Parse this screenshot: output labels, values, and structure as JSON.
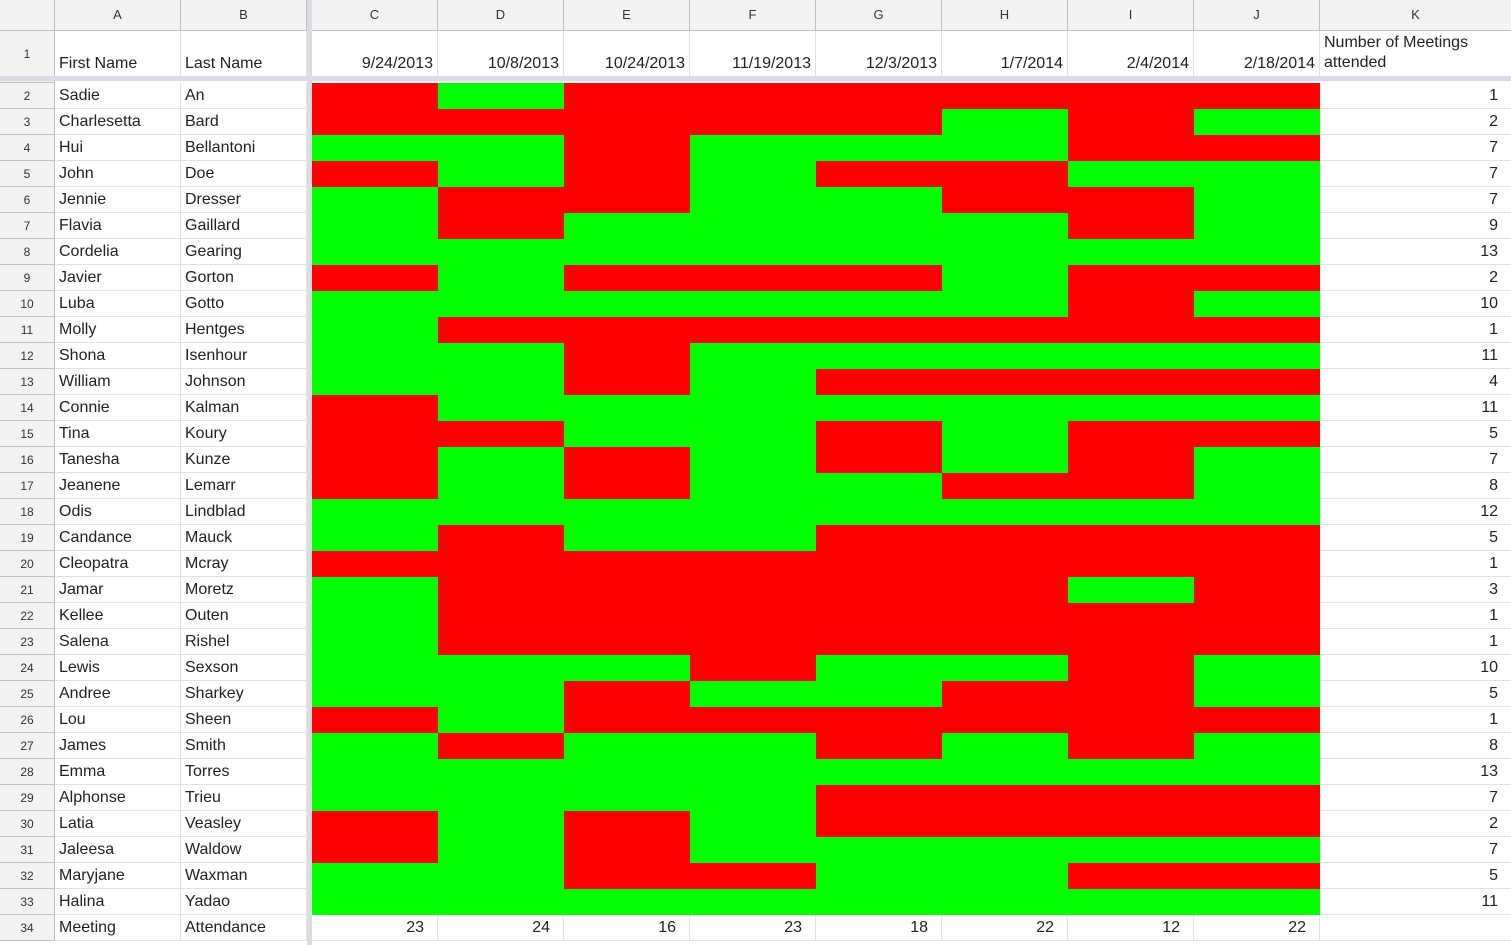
{
  "columns": [
    "A",
    "B",
    "C",
    "D",
    "E",
    "F",
    "G",
    "H",
    "I",
    "J",
    "K"
  ],
  "headers": {
    "first_name": "First Name",
    "last_name": "Last Name",
    "dates": [
      "9/24/2013",
      "10/8/2013",
      "10/24/2013",
      "11/19/2013",
      "12/3/2013",
      "1/7/2014",
      "2/4/2014",
      "2/18/2014"
    ],
    "meetings": "Number of Meetings attended"
  },
  "colors": {
    "present": "#00ff00",
    "absent": "#ff0000"
  },
  "rows": [
    {
      "first": "Sadie",
      "last": "An",
      "attendance": [
        0,
        1,
        0,
        0,
        0,
        0,
        0,
        0
      ],
      "total": "1"
    },
    {
      "first": "Charlesetta",
      "last": "Bard",
      "attendance": [
        0,
        0,
        0,
        0,
        0,
        1,
        0,
        1
      ],
      "total": "2"
    },
    {
      "first": "Hui",
      "last": "Bellantoni",
      "attendance": [
        1,
        1,
        0,
        1,
        1,
        1,
        0,
        0
      ],
      "total": "7"
    },
    {
      "first": "John",
      "last": "Doe",
      "attendance": [
        0,
        1,
        0,
        1,
        0,
        0,
        1,
        1
      ],
      "total": "7"
    },
    {
      "first": "Jennie",
      "last": "Dresser",
      "attendance": [
        1,
        0,
        0,
        1,
        1,
        0,
        0,
        1
      ],
      "total": "7"
    },
    {
      "first": "Flavia",
      "last": "Gaillard",
      "attendance": [
        1,
        0,
        1,
        1,
        1,
        1,
        0,
        1
      ],
      "total": "9"
    },
    {
      "first": "Cordelia",
      "last": "Gearing",
      "attendance": [
        1,
        1,
        1,
        1,
        1,
        1,
        1,
        1
      ],
      "total": "13"
    },
    {
      "first": "Javier",
      "last": "Gorton",
      "attendance": [
        0,
        1,
        0,
        0,
        0,
        1,
        0,
        0
      ],
      "total": "2"
    },
    {
      "first": "Luba",
      "last": "Gotto",
      "attendance": [
        1,
        1,
        1,
        1,
        1,
        1,
        0,
        1
      ],
      "total": "10"
    },
    {
      "first": "Molly",
      "last": "Hentges",
      "attendance": [
        1,
        0,
        0,
        0,
        0,
        0,
        0,
        0
      ],
      "total": "1"
    },
    {
      "first": "Shona",
      "last": "Isenhour",
      "attendance": [
        1,
        1,
        0,
        1,
        1,
        1,
        1,
        1
      ],
      "total": "11"
    },
    {
      "first": "William",
      "last": "Johnson",
      "attendance": [
        1,
        1,
        0,
        1,
        0,
        0,
        0,
        0
      ],
      "total": "4"
    },
    {
      "first": "Connie",
      "last": "Kalman",
      "attendance": [
        0,
        1,
        1,
        1,
        1,
        1,
        1,
        1
      ],
      "total": "11"
    },
    {
      "first": "Tina",
      "last": "Koury",
      "attendance": [
        0,
        0,
        1,
        1,
        0,
        1,
        0,
        0
      ],
      "total": "5"
    },
    {
      "first": "Tanesha",
      "last": "Kunze",
      "attendance": [
        0,
        1,
        0,
        1,
        0,
        1,
        0,
        1
      ],
      "total": "7"
    },
    {
      "first": "Jeanene",
      "last": "Lemarr",
      "attendance": [
        0,
        1,
        0,
        1,
        1,
        0,
        0,
        1
      ],
      "total": "8"
    },
    {
      "first": "Odis",
      "last": "Lindblad",
      "attendance": [
        1,
        1,
        1,
        1,
        1,
        1,
        1,
        1
      ],
      "total": "12"
    },
    {
      "first": "Candance",
      "last": "Mauck",
      "attendance": [
        1,
        0,
        1,
        1,
        0,
        0,
        0,
        0
      ],
      "total": "5"
    },
    {
      "first": "Cleopatra",
      "last": "Mcray",
      "attendance": [
        0,
        0,
        0,
        0,
        0,
        0,
        0,
        0
      ],
      "total": "1"
    },
    {
      "first": "Jamar",
      "last": "Moretz",
      "attendance": [
        1,
        0,
        0,
        0,
        0,
        0,
        1,
        0
      ],
      "total": "3"
    },
    {
      "first": "Kellee",
      "last": "Outen",
      "attendance": [
        1,
        0,
        0,
        0,
        0,
        0,
        0,
        0
      ],
      "total": "1"
    },
    {
      "first": "Salena",
      "last": "Rishel",
      "attendance": [
        1,
        0,
        0,
        0,
        0,
        0,
        0,
        0
      ],
      "total": "1"
    },
    {
      "first": "Lewis",
      "last": "Sexson",
      "attendance": [
        1,
        1,
        1,
        0,
        1,
        1,
        0,
        1
      ],
      "total": "10"
    },
    {
      "first": "Andree",
      "last": "Sharkey",
      "attendance": [
        1,
        1,
        0,
        1,
        1,
        0,
        0,
        1
      ],
      "total": "5"
    },
    {
      "first": "Lou",
      "last": "Sheen",
      "attendance": [
        0,
        1,
        0,
        0,
        0,
        0,
        0,
        0
      ],
      "total": "1"
    },
    {
      "first": "James",
      "last": "Smith",
      "attendance": [
        1,
        0,
        1,
        1,
        0,
        1,
        0,
        1
      ],
      "total": "8"
    },
    {
      "first": "Emma",
      "last": "Torres",
      "attendance": [
        1,
        1,
        1,
        1,
        1,
        1,
        1,
        1
      ],
      "total": "13"
    },
    {
      "first": "Alphonse",
      "last": "Trieu",
      "attendance": [
        1,
        1,
        1,
        1,
        0,
        0,
        0,
        0
      ],
      "total": "7"
    },
    {
      "first": "Latia",
      "last": "Veasley",
      "attendance": [
        0,
        1,
        0,
        1,
        0,
        0,
        0,
        0
      ],
      "total": "2"
    },
    {
      "first": "Jaleesa",
      "last": "Waldow",
      "attendance": [
        0,
        1,
        0,
        1,
        1,
        1,
        1,
        1
      ],
      "total": "7"
    },
    {
      "first": "Maryjane",
      "last": "Waxman",
      "attendance": [
        1,
        1,
        0,
        0,
        1,
        1,
        0,
        0
      ],
      "total": "5"
    },
    {
      "first": "Halina",
      "last": "Yadao",
      "attendance": [
        1,
        1,
        1,
        1,
        1,
        1,
        1,
        1
      ],
      "total": "11"
    }
  ],
  "summary": {
    "label_first": "Meeting",
    "label_last": "Attendance",
    "totals": [
      "23",
      "24",
      "16",
      "23",
      "18",
      "22",
      "12",
      "22"
    ]
  }
}
